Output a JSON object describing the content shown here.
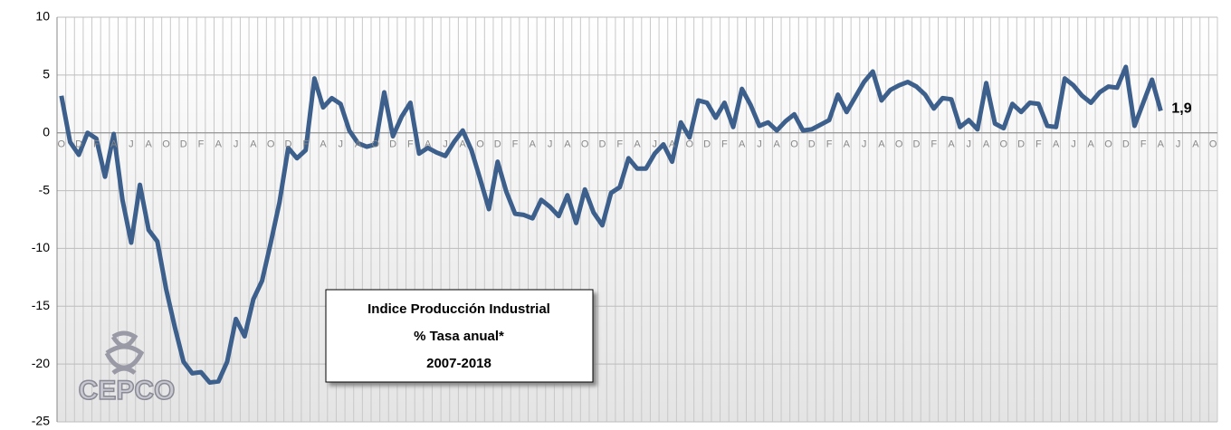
{
  "chart_data": {
    "type": "line",
    "title_box": [
      "Indice Producción Industrial",
      "% Tasa anual*",
      "2007-2018"
    ],
    "logo": "CEPCO",
    "categories": [
      "O",
      null,
      "D",
      null,
      "F",
      null,
      "A",
      null,
      "J",
      null,
      "A",
      null,
      "O",
      null,
      "D",
      null,
      "F",
      null,
      "A",
      null,
      "J",
      null,
      "A",
      null,
      "O",
      null,
      "D",
      null,
      "F",
      null,
      "A",
      null,
      "J",
      null,
      "A",
      null,
      "O",
      null,
      "D",
      null,
      "F",
      null,
      "A",
      null,
      "J",
      null,
      "A",
      null,
      "O",
      null,
      "D",
      null,
      "F",
      null,
      "A",
      null,
      "J",
      null,
      "A",
      null,
      "O",
      null,
      "D",
      null,
      "F",
      null,
      "A",
      null,
      "J",
      null,
      "A",
      null,
      "O",
      null,
      "D",
      null,
      "F",
      null,
      "A",
      null,
      "J",
      null,
      "A",
      null,
      "O",
      null,
      "D",
      null,
      "F",
      null,
      "A",
      null,
      "J",
      null,
      "A",
      null,
      "O",
      null,
      "D",
      null,
      "F",
      null,
      "A",
      null,
      "J",
      null,
      "A",
      null,
      "O",
      null,
      "D",
      null,
      "F",
      null,
      "A",
      null,
      "J",
      null,
      "A",
      null,
      "O",
      null,
      "D",
      null,
      "F",
      null,
      "A",
      null,
      "J",
      null,
      "A",
      null,
      "O"
    ],
    "series": [
      {
        "name": "Indice Producción Industrial",
        "color": "#3d5f8c",
        "values": [
          3.2,
          -0.8,
          -1.9,
          0,
          -0.5,
          -3.8,
          -0.1,
          -5.8,
          -9.5,
          -4.5,
          -8.4,
          -9.4,
          -13.5,
          -16.8,
          -19.8,
          -20.8,
          -20.7,
          -21.6,
          -21.5,
          -19.8,
          -16.1,
          -17.6,
          -14.4,
          -12.8,
          -9.5,
          -6.0,
          -1.3,
          -2.2,
          -1.5,
          4.7,
          2.2,
          3.0,
          2.5,
          0.2,
          -0.9,
          -1.2,
          -1.0,
          3.5,
          -0.3,
          1.4,
          2.6,
          -1.8,
          -1.3,
          -1.7,
          -2.0,
          -0.8,
          0.2,
          -1.5,
          -4.0,
          -6.6,
          -2.5,
          -5.1,
          -7.0,
          -7.1,
          -7.4,
          -5.8,
          -6.4,
          -7.2,
          -5.4,
          -7.8,
          -4.9,
          -6.9,
          -8.0,
          -5.2,
          -4.7,
          -2.2,
          -3.1,
          -3.1,
          -1.8,
          -1.0,
          -2.5,
          0.9,
          -0.4,
          2.8,
          2.6,
          1.3,
          2.6,
          0.5,
          3.8,
          2.4,
          0.6,
          0.9,
          0.2,
          1.0,
          1.6,
          0.2,
          0.3,
          0.7,
          1.1,
          3.3,
          1.8,
          3.1,
          4.4,
          5.3,
          2.8,
          3.7,
          4.1,
          4.4,
          4.0,
          3.3,
          2.1,
          3.0,
          2.9,
          0.5,
          1.1,
          0.3,
          4.3,
          0.8,
          0.4,
          2.5,
          1.8,
          2.6,
          2.5,
          0.6,
          0.5,
          4.7,
          4.1,
          3.2,
          2.6,
          3.5,
          4.0,
          3.9,
          5.7,
          0.6,
          2.6,
          4.6,
          1.9,
          null,
          null,
          null,
          null,
          null,
          null
        ],
        "value_labels": {
          "126": "1,9"
        }
      }
    ],
    "ylim": [
      -25,
      10
    ],
    "yticks": [
      -25,
      -20,
      -15,
      -10,
      -5,
      0,
      5,
      10
    ],
    "grid": true
  }
}
